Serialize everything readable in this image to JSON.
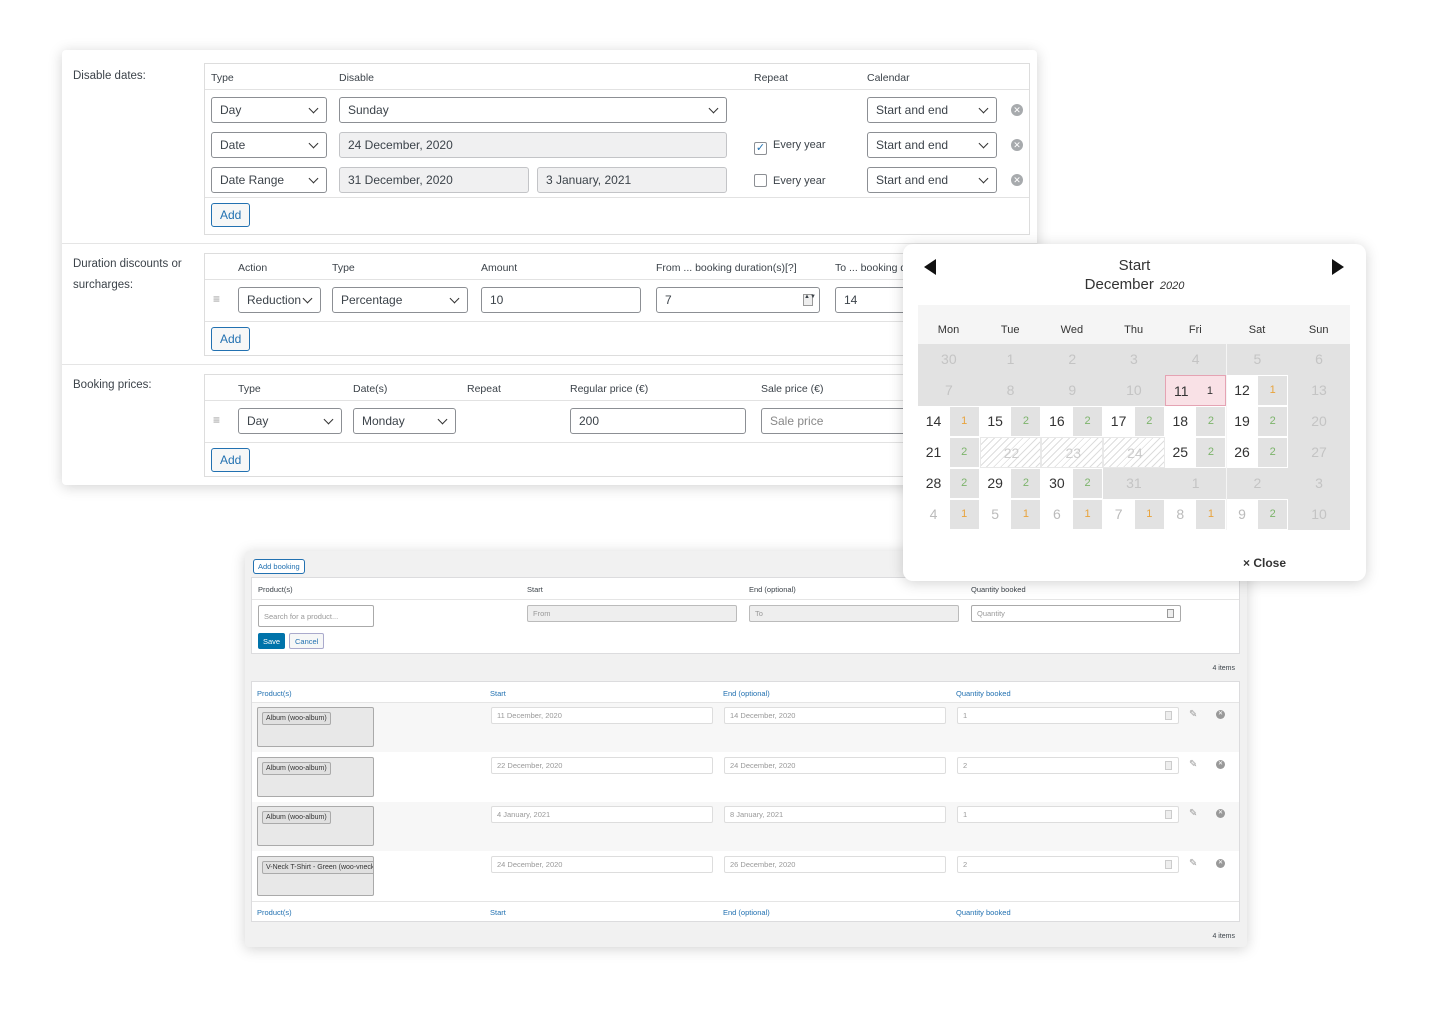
{
  "disable_dates": {
    "label": "Disable dates:",
    "headers": [
      "Type",
      "Disable",
      "Repeat",
      "Calendar"
    ],
    "rows": [
      {
        "type": "Day",
        "disable": "Sunday",
        "calendar": "Start and end"
      },
      {
        "type": "Date",
        "disable": "24 December, 2020",
        "repeat": "Every year",
        "checked": true,
        "calendar": "Start and end"
      },
      {
        "type": "Date Range",
        "from": "31 December, 2020",
        "to": "3 January, 2021",
        "repeat": "Every year",
        "checked": false,
        "calendar": "Start and end"
      }
    ],
    "add": "Add"
  },
  "duration": {
    "label": "Duration discounts or surcharges:",
    "headers": [
      "Action",
      "Type",
      "Amount",
      "From ... booking duration(s)[?]",
      "To ... booking d"
    ],
    "row": {
      "action": "Reduction",
      "type": "Percentage",
      "amount": "10",
      "from": "7",
      "to": "14"
    },
    "add": "Add"
  },
  "booking_prices": {
    "label": "Booking prices:",
    "headers": [
      "Type",
      "Date(s)",
      "Repeat",
      "Regular price (€)",
      "Sale price (€)"
    ],
    "row": {
      "type": "Day",
      "date": "Monday",
      "regular": "200",
      "sale_placeholder": "Sale price"
    },
    "add": "Add"
  },
  "calendar": {
    "title": "Start",
    "month": "December",
    "year": "2020",
    "close": "Close",
    "days": [
      "Mon",
      "Tue",
      "Wed",
      "Thu",
      "Fri",
      "Sat",
      "Sun"
    ],
    "colors": {
      "one": "#e8a33c",
      "two": "#7cb46b",
      "selected": "#f9e1e6"
    },
    "weeks": [
      [
        [
          "30",
          "d"
        ],
        [
          "1",
          "d"
        ],
        [
          "2",
          "d"
        ],
        [
          "3",
          "d"
        ],
        [
          "4",
          "d"
        ],
        [
          "5",
          "d"
        ],
        [
          "6",
          "d"
        ]
      ],
      [
        [
          "7",
          "d"
        ],
        [
          "8",
          "d"
        ],
        [
          "9",
          "d"
        ],
        [
          "10",
          "d"
        ],
        [
          "11",
          "s",
          "1"
        ],
        [
          "12",
          "a",
          "1"
        ],
        [
          "13",
          "d"
        ]
      ],
      [
        [
          "14",
          "a",
          "1"
        ],
        [
          "15",
          "a",
          "2"
        ],
        [
          "16",
          "a",
          "2"
        ],
        [
          "17",
          "a",
          "2"
        ],
        [
          "18",
          "a",
          "2"
        ],
        [
          "19",
          "a",
          "2"
        ],
        [
          "20",
          "d"
        ]
      ],
      [
        [
          "21",
          "a",
          "2"
        ],
        [
          "22",
          "h"
        ],
        [
          "23",
          "h"
        ],
        [
          "24",
          "h"
        ],
        [
          "25",
          "a",
          "2"
        ],
        [
          "26",
          "a",
          "2"
        ],
        [
          "27",
          "d"
        ]
      ],
      [
        [
          "28",
          "a",
          "2"
        ],
        [
          "29",
          "a",
          "2"
        ],
        [
          "30",
          "a",
          "2"
        ],
        [
          "31",
          "d"
        ],
        [
          "1",
          "d"
        ],
        [
          "2",
          "d"
        ],
        [
          "3",
          "d"
        ]
      ],
      [
        [
          "4",
          "o",
          "1"
        ],
        [
          "5",
          "o",
          "1"
        ],
        [
          "6",
          "o",
          "1"
        ],
        [
          "7",
          "o",
          "1"
        ],
        [
          "8",
          "o",
          "1"
        ],
        [
          "9",
          "o",
          "2"
        ],
        [
          "10",
          "d"
        ]
      ]
    ]
  },
  "bookings": {
    "add_booking": "Add booking",
    "form_headers": [
      "Product(s)",
      "Start",
      "End (optional)",
      "Quantity booked"
    ],
    "search_placeholder": "Search for a product...",
    "from_placeholder": "From",
    "to_placeholder": "To",
    "qty_placeholder": "Quantity",
    "save": "Save",
    "cancel": "Cancel",
    "count": "4 items",
    "columns": [
      "Product(s)",
      "Start",
      "End (optional)",
      "Quantity booked"
    ],
    "rows": [
      {
        "product": "Album (woo-album)",
        "start": "11 December, 2020",
        "end": "14 December, 2020",
        "qty": "1"
      },
      {
        "product": "Album (woo-album)",
        "start": "22 December, 2020",
        "end": "24 December, 2020",
        "qty": "2"
      },
      {
        "product": "Album (woo-album)",
        "start": "4 January, 2021",
        "end": "8 January, 2021",
        "qty": "1"
      },
      {
        "product": "V-Neck T-Shirt - Green (woo-vneck)",
        "start": "24 December, 2020",
        "end": "26 December, 2020",
        "qty": "2"
      }
    ]
  }
}
